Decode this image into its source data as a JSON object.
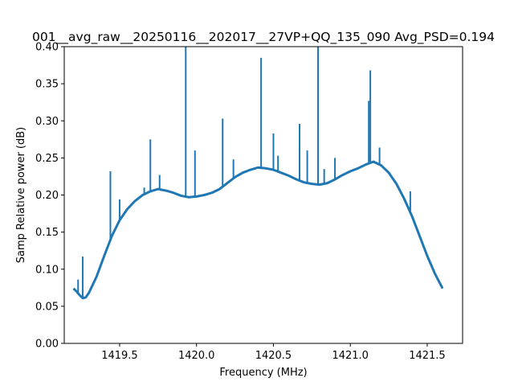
{
  "chart_data": {
    "type": "line",
    "title": "001__avg_raw__20250116__202017__27VP+QQ_135_090 Avg_PSD=0.194",
    "xlabel": "Frequency (MHz)",
    "ylabel": "Samp Relative power (dB)",
    "xlim": [
      1419.14,
      1421.73
    ],
    "ylim": [
      0.0,
      0.4
    ],
    "xticks": [
      "1419.5",
      "1420.0",
      "1420.5",
      "1421.0",
      "1421.5"
    ],
    "xtick_values": [
      1419.5,
      1420.0,
      1420.5,
      1421.0,
      1421.5
    ],
    "yticks": [
      "0.00",
      "0.05",
      "0.10",
      "0.15",
      "0.20",
      "0.25",
      "0.30",
      "0.35",
      "0.40"
    ],
    "ytick_values": [
      0.0,
      0.05,
      0.1,
      0.15,
      0.2,
      0.25,
      0.3,
      0.35,
      0.4
    ],
    "grid": false,
    "line_color": "#1f77b4",
    "baseline": {
      "x": [
        1419.2,
        1419.22,
        1419.24,
        1419.26,
        1419.28,
        1419.3,
        1419.35,
        1419.4,
        1419.45,
        1419.5,
        1419.55,
        1419.6,
        1419.65,
        1419.7,
        1419.75,
        1419.8,
        1419.85,
        1419.9,
        1419.95,
        1420.0,
        1420.05,
        1420.1,
        1420.15,
        1420.2,
        1420.25,
        1420.3,
        1420.35,
        1420.4,
        1420.45,
        1420.5,
        1420.55,
        1420.6,
        1420.65,
        1420.7,
        1420.75,
        1420.8,
        1420.85,
        1420.9,
        1420.95,
        1421.0,
        1421.05,
        1421.1,
        1421.15,
        1421.2,
        1421.25,
        1421.3,
        1421.35,
        1421.4,
        1421.45,
        1421.5,
        1421.55,
        1421.6
      ],
      "y": [
        0.074,
        0.07,
        0.065,
        0.061,
        0.062,
        0.068,
        0.09,
        0.118,
        0.145,
        0.166,
        0.181,
        0.192,
        0.2,
        0.205,
        0.208,
        0.206,
        0.203,
        0.199,
        0.197,
        0.198,
        0.2,
        0.203,
        0.208,
        0.216,
        0.224,
        0.23,
        0.234,
        0.237,
        0.236,
        0.234,
        0.23,
        0.226,
        0.221,
        0.217,
        0.215,
        0.214,
        0.216,
        0.221,
        0.227,
        0.232,
        0.236,
        0.241,
        0.245,
        0.24,
        0.23,
        0.215,
        0.195,
        0.172,
        0.145,
        0.118,
        0.094,
        0.074
      ]
    },
    "spikes": [
      {
        "x": 1419.23,
        "y": 0.086
      },
      {
        "x": 1419.26,
        "y": 0.117
      },
      {
        "x": 1419.44,
        "y": 0.232
      },
      {
        "x": 1419.5,
        "y": 0.194
      },
      {
        "x": 1419.66,
        "y": 0.21
      },
      {
        "x": 1419.7,
        "y": 0.275
      },
      {
        "x": 1419.76,
        "y": 0.227
      },
      {
        "x": 1419.93,
        "y": 0.4
      },
      {
        "x": 1419.99,
        "y": 0.26
      },
      {
        "x": 1420.17,
        "y": 0.303
      },
      {
        "x": 1420.24,
        "y": 0.248
      },
      {
        "x": 1420.42,
        "y": 0.385
      },
      {
        "x": 1420.5,
        "y": 0.283
      },
      {
        "x": 1420.53,
        "y": 0.253
      },
      {
        "x": 1420.67,
        "y": 0.296
      },
      {
        "x": 1420.72,
        "y": 0.26
      },
      {
        "x": 1420.79,
        "y": 0.4
      },
      {
        "x": 1420.83,
        "y": 0.235
      },
      {
        "x": 1420.9,
        "y": 0.25
      },
      {
        "x": 1421.12,
        "y": 0.327
      },
      {
        "x": 1421.13,
        "y": 0.368
      },
      {
        "x": 1421.19,
        "y": 0.264
      },
      {
        "x": 1421.39,
        "y": 0.205
      }
    ]
  }
}
